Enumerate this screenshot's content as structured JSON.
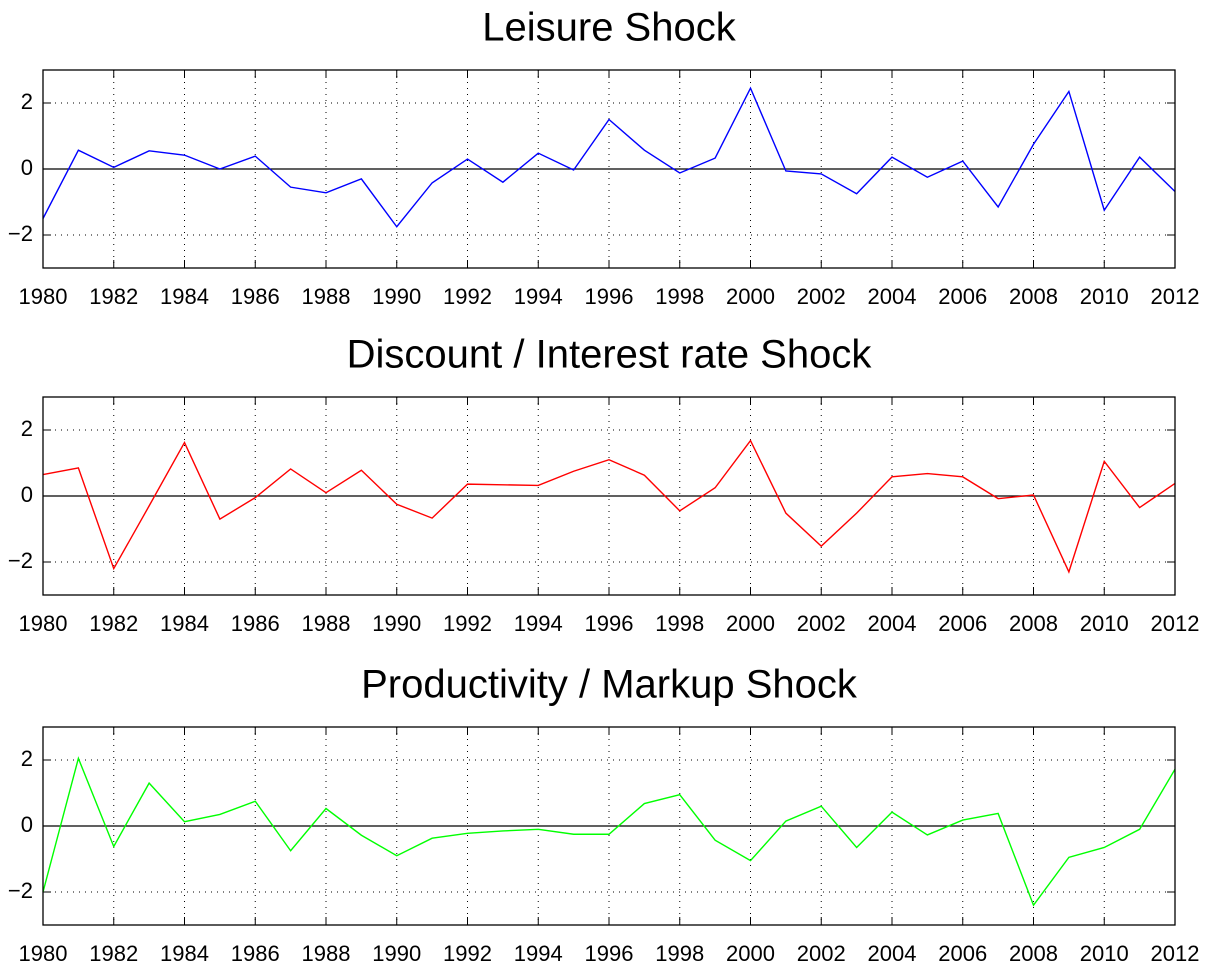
{
  "chart_data": [
    {
      "type": "line",
      "title": "Leisure Shock",
      "x": [
        1980,
        1981,
        1982,
        1983,
        1984,
        1985,
        1986,
        1987,
        1988,
        1989,
        1990,
        1991,
        1992,
        1993,
        1994,
        1995,
        1996,
        1997,
        1998,
        1999,
        2000,
        2001,
        2002,
        2003,
        2004,
        2005,
        2006,
        2007,
        2008,
        2009,
        2010,
        2011,
        2012
      ],
      "series": [
        {
          "color": "#0000ff",
          "values": [
            -1.5,
            0.57,
            0.05,
            0.55,
            0.42,
            0.0,
            0.39,
            -0.55,
            -0.72,
            -0.3,
            -1.75,
            -0.42,
            0.3,
            -0.4,
            0.48,
            -0.03,
            1.5,
            0.57,
            -0.12,
            0.33,
            2.45,
            -0.06,
            -0.15,
            -0.75,
            0.36,
            -0.25,
            0.24,
            -1.15,
            0.75,
            2.35,
            -1.25,
            0.36,
            -0.68
          ]
        }
      ],
      "xlim": [
        1980,
        2012
      ],
      "xticks": [
        1980,
        1982,
        1984,
        1986,
        1988,
        1990,
        1992,
        1994,
        1996,
        1998,
        2000,
        2002,
        2004,
        2006,
        2008,
        2010,
        2012
      ],
      "ylim": [
        -3,
        3
      ],
      "yticks": [
        {
          "value": -2,
          "label": "−2"
        },
        0,
        2
      ],
      "grid": true,
      "zero_line": true
    },
    {
      "type": "line",
      "title": "Discount / Interest rate Shock",
      "x": [
        1980,
        1981,
        1982,
        1983,
        1984,
        1985,
        1986,
        1987,
        1988,
        1989,
        1990,
        1991,
        1992,
        1993,
        1994,
        1995,
        1996,
        1997,
        1998,
        1999,
        2000,
        2001,
        2002,
        2003,
        2004,
        2005,
        2006,
        2007,
        2008,
        2009,
        2010,
        2011,
        2012
      ],
      "series": [
        {
          "color": "#ff0000",
          "values": [
            0.65,
            0.85,
            -2.2,
            -0.3,
            1.62,
            -0.7,
            -0.05,
            0.82,
            0.1,
            0.78,
            -0.25,
            -0.67,
            0.36,
            0.34,
            0.32,
            0.75,
            1.1,
            0.63,
            -0.45,
            0.25,
            1.68,
            -0.52,
            -1.52,
            -0.52,
            0.58,
            0.68,
            0.58,
            -0.08,
            0.03,
            -2.3,
            1.05,
            -0.35,
            0.38
          ]
        }
      ],
      "xlim": [
        1980,
        2012
      ],
      "xticks": [
        1980,
        1982,
        1984,
        1986,
        1988,
        1990,
        1992,
        1994,
        1996,
        1998,
        2000,
        2002,
        2004,
        2006,
        2008,
        2010,
        2012
      ],
      "ylim": [
        -3,
        3
      ],
      "yticks": [
        {
          "value": -2,
          "label": "−2"
        },
        0,
        2
      ],
      "grid": true,
      "zero_line": true
    },
    {
      "type": "line",
      "title": "Productivity / Markup Shock",
      "x": [
        1980,
        1981,
        1982,
        1983,
        1984,
        1985,
        1986,
        1987,
        1988,
        1989,
        1990,
        1991,
        1992,
        1993,
        1994,
        1995,
        1996,
        1997,
        1998,
        1999,
        2000,
        2001,
        2002,
        2003,
        2004,
        2005,
        2006,
        2007,
        2008,
        2009,
        2010,
        2011,
        2012
      ],
      "series": [
        {
          "color": "#00ff00",
          "values": [
            -2.0,
            2.05,
            -0.62,
            1.3,
            0.13,
            0.35,
            0.75,
            -0.75,
            0.53,
            -0.28,
            -0.9,
            -0.37,
            -0.22,
            -0.15,
            -0.1,
            -0.25,
            -0.25,
            0.68,
            0.95,
            -0.43,
            -1.05,
            0.15,
            0.6,
            -0.65,
            0.42,
            -0.27,
            0.18,
            0.38,
            -2.4,
            -0.95,
            -0.65,
            -0.1,
            1.72
          ]
        }
      ],
      "xlim": [
        1980,
        2012
      ],
      "xticks": [
        1980,
        1982,
        1984,
        1986,
        1988,
        1990,
        1992,
        1994,
        1996,
        1998,
        2000,
        2002,
        2004,
        2006,
        2008,
        2010,
        2012
      ],
      "ylim": [
        -3,
        3
      ],
      "yticks": [
        {
          "value": -2,
          "label": "−2"
        },
        0,
        2
      ],
      "grid": true,
      "zero_line": true
    }
  ]
}
